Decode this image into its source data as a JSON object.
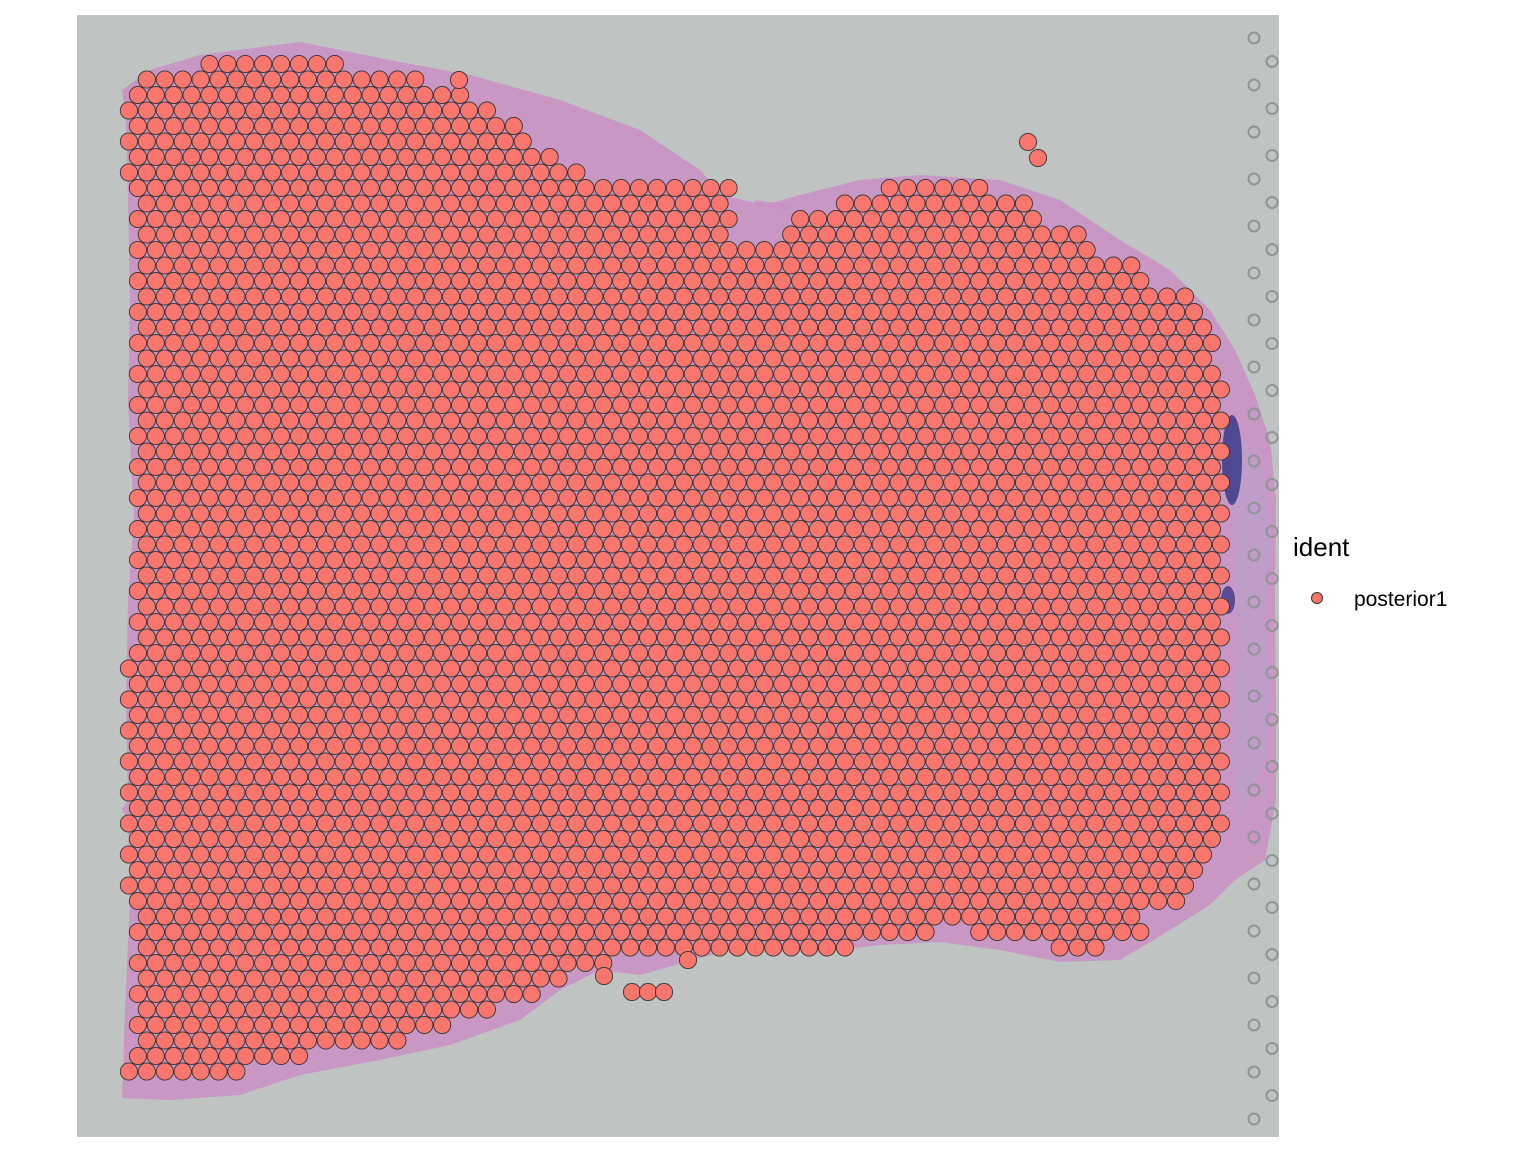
{
  "chart_data": {
    "type": "scatter",
    "title": "",
    "xlabel": "",
    "ylabel": "",
    "grid": false,
    "background": "H&E-stained tissue section image",
    "spot_grid": "hexagonal",
    "legend": {
      "position": "right",
      "title": "ident",
      "entries": [
        {
          "label": "posterior1",
          "color": "#F8766D"
        }
      ]
    },
    "series": [
      {
        "name": "posterior1",
        "color": "#F8766D",
        "outline_color": "#333333"
      }
    ]
  },
  "colors": {
    "spot_fill": "#F8766D",
    "spot_outline": "#333333",
    "slide_background": "#bfc3c2",
    "tissue_stain": "#c98fc4",
    "nuclei_stain": "#3d3a8a",
    "fiducial_ring": "#8f9495"
  }
}
